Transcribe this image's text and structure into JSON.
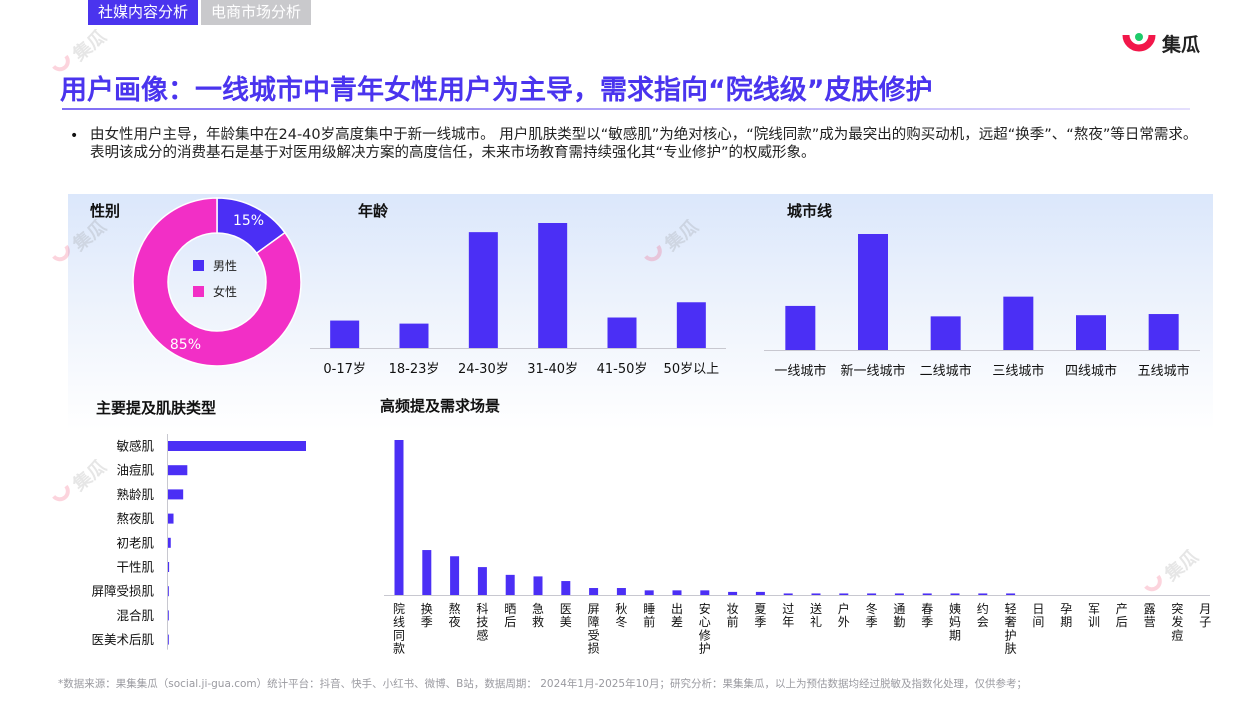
{
  "tabs": [
    "社媒内容分析",
    "电商市场分析"
  ],
  "brand": {
    "name": "集瓜",
    "watermark": "集瓜"
  },
  "title": "用户画像：一线城市中青年女性用户为主导，需求指向“院线级”皮肤修护",
  "summary": "由女性用户主导，年龄集中在24-40岁高度集中于新一线城市。 用户肌肤类型以“敏感肌”为绝对核心，“院线同款”成为最突出的购买动机，远超“换季”、“熬夜”等日常需求。表明该成分的消费基石是基于对医用级解决方案的高度信任，未来市场教育需持续强化其“专业修护”的权威形象。",
  "footer": "*数据来源：果集集瓜（social.ji-gua.com）统计平台：抖音、快手、小红书、微博、B站，数据周期： 2024年1月-2025年10月；研究分析：果集集瓜，以上为预估数据均经过脱敏及指数化处理，仅供参考；",
  "colors": {
    "accent": "#4a34ee",
    "pink": "#f22fc6",
    "bar": "#4b2ff5"
  },
  "chart_data": [
    {
      "type": "pie",
      "title": "性别",
      "categories": [
        "男性",
        "女性"
      ],
      "values": [
        15,
        85
      ],
      "value_labels": [
        "15%",
        "85%"
      ],
      "legend": "center"
    },
    {
      "type": "bar",
      "title": "年龄",
      "categories": [
        "0-17岁",
        "18-23岁",
        "24-30岁",
        "31-40岁",
        "41-50岁",
        "50岁以上"
      ],
      "values": [
        9,
        8,
        38,
        41,
        10,
        15
      ]
    },
    {
      "type": "bar",
      "title": "城市线",
      "categories": [
        "一线城市",
        "新一线城市",
        "二线城市",
        "三线城市",
        "四线城市",
        "五线城市"
      ],
      "values": [
        38,
        100,
        29,
        46,
        30,
        31
      ]
    },
    {
      "type": "bar",
      "orientation": "horizontal",
      "title": "主要提及肌肤类型",
      "categories": [
        "敏感肌",
        "油痘肌",
        "熟龄肌",
        "熬夜肌",
        "初老肌",
        "干性肌",
        "屏障受损肌",
        "混合肌",
        "医美术后肌"
      ],
      "values": [
        100,
        14,
        11,
        4,
        2,
        0.8,
        0.6,
        0.5,
        0.4
      ]
    },
    {
      "type": "bar",
      "title": "高频提及需求场景",
      "categories": [
        "院线同款",
        "换季",
        "熬夜",
        "科技感",
        "晒后",
        "急救",
        "医美",
        "屏障受损",
        "秋冬",
        "睡前",
        "出差",
        "安心修护",
        "妆前",
        "夏季",
        "过年",
        "送礼",
        "户外",
        "冬季",
        "通勤",
        "春季",
        "姨妈期",
        "约会",
        "轻奢护肤",
        "日间",
        "孕期",
        "军训",
        "产后",
        "露营",
        "突发痘",
        "月子"
      ],
      "values": [
        100,
        29,
        25,
        18,
        13,
        12,
        9,
        4.5,
        4.5,
        3,
        3,
        3,
        2,
        2,
        1,
        1,
        1,
        1,
        1,
        1,
        1,
        1,
        1,
        0,
        0,
        0,
        0,
        0,
        0,
        0
      ]
    }
  ]
}
